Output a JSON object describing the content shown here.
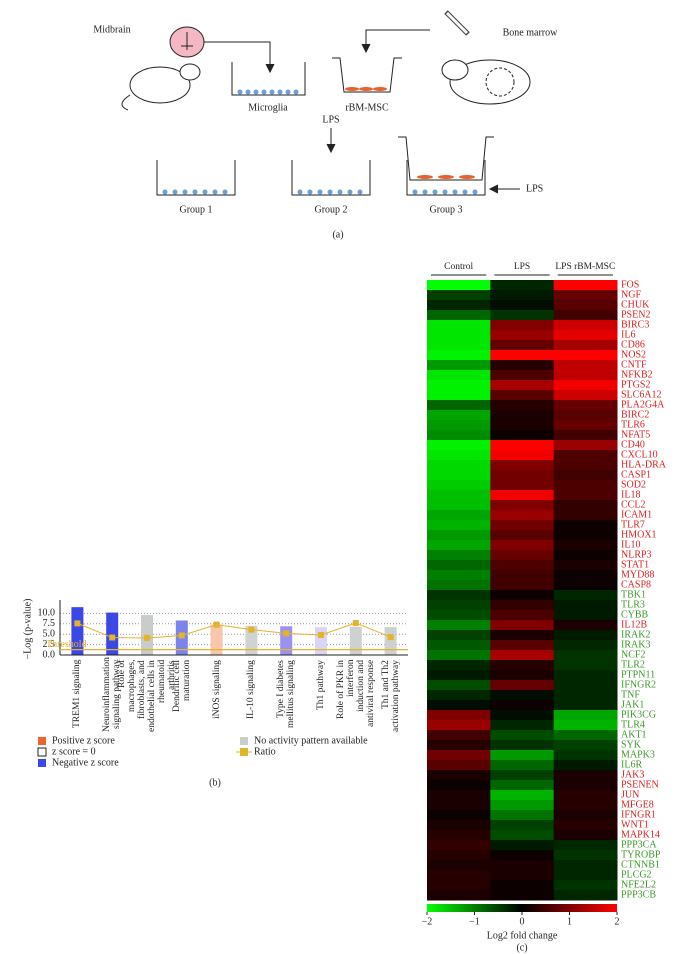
{
  "panel_a": {
    "labels": {
      "midbrain": "Midbrain",
      "bone_marrow": "Bone marrow",
      "microglia": "Microglia",
      "rbm_msc": "rBM-MSC",
      "lps_top": "LPS",
      "group1": "Group 1",
      "group2": "Group 2",
      "group3": "Group 3",
      "lps_side": "LPS"
    },
    "panel_label": "(a)"
  },
  "chart_data": [
    {
      "type": "bar",
      "panel_label": "(b)",
      "ylabel": "−Log (p-value)",
      "categories": [
        "TREM1 signaling",
        "Neuroinflammation signaling pathway",
        "Role of macrophages, fibroblasts, and endothelial cells in rheumatoid arthritis",
        "Dendritic cell maturation",
        "iNOS signaling",
        "IL-10 signaling",
        "Type I diabetes mellitus signaling",
        "Th1 pathway",
        "Role of PKR in interferon induction and antiviral response",
        "Th1 and Th2 activation pathway"
      ],
      "values": [
        11.5,
        10.2,
        9.6,
        8.3,
        7.3,
        7.0,
        6.9,
        6.7,
        6.8,
        6.7
      ],
      "colors": [
        "#3b47e6",
        "#3b47e6",
        "#c8cdca",
        "#7b84ea",
        "#f7c6ad",
        "#cfd3d1",
        "#9a92ee",
        "#d9d6f5",
        "#cdd1cf",
        "#cdd1cf"
      ],
      "series": [
        {
          "name": "Ratio",
          "color": "#e3b42a",
          "values": [
            7.6,
            4.2,
            4.1,
            4.7,
            7.3,
            6.1,
            5.2,
            4.8,
            7.7,
            4.3
          ]
        }
      ],
      "threshold": {
        "value": 1.3,
        "label": "Threshold",
        "color": "#e3b42a"
      },
      "ylim": [
        0,
        12.5
      ],
      "yticks": [
        {
          "value": 0,
          "label": "0.0"
        },
        2.5,
        {
          "value": 5,
          "label": "5.0"
        },
        7.5,
        {
          "value": 10,
          "label": "10.0"
        }
      ],
      "grid": true,
      "legend": [
        {
          "label": "Positive z score",
          "color": "#f0612d"
        },
        {
          "label": "z score = 0",
          "color": "#ffffff"
        },
        {
          "label": "Negative z score",
          "color": "#3b47e6"
        },
        {
          "label": "No activity pattern available",
          "color": "#c8cdca"
        }
      ]
    },
    {
      "type": "heatmap",
      "panel_label": "(c)",
      "columns": [
        "Control",
        "LPS",
        "LPS rBM-MSC"
      ],
      "rows": [
        "FOS",
        "NGF",
        "CHUK",
        "PSEN2",
        "BIRC3",
        "IL6",
        "CD86",
        "NOS2",
        "CNTF",
        "NFKB2",
        "PTGS2",
        "SLC6A12",
        "PLA2G4A",
        "BIRC2",
        "TLR6",
        "NFAT5",
        "CD40",
        "CXCL10",
        "HLA-DRA",
        "CASP1",
        "SOD2",
        "IL18",
        "CCL2",
        "ICAM1",
        "TLR7",
        "HMOX1",
        "IL10",
        "NLRP3",
        "STAT1",
        "MYD88",
        "CASP8",
        "TBK1",
        "TLR3",
        "CYBB",
        "IL12B",
        "IRAK2",
        "IRAK3",
        "NCF2",
        "TLR2",
        "PTPN11",
        "IFNGR2",
        "TNF",
        "JAK1",
        "PIK3CG",
        "TLR4",
        "AKT1",
        "SYK",
        "MAPK3",
        "IL6R",
        "JAK3",
        "PSENEN",
        "JUN",
        "MFGE8",
        "IFNGR1",
        "WNT1",
        "MAPK14",
        "PPP3CA",
        "TYROBP",
        "CTNNB1",
        "PLCG2",
        "NFE2L2",
        "PPP3CB"
      ],
      "label_colors": [
        "#e02020",
        "#e02020",
        "#e02020",
        "#e02020",
        "#e02020",
        "#e02020",
        "#e02020",
        "#e02020",
        "#e02020",
        "#e02020",
        "#e02020",
        "#e02020",
        "#e02020",
        "#e02020",
        "#e02020",
        "#e02020",
        "#e02020",
        "#e02020",
        "#e02020",
        "#e02020",
        "#e02020",
        "#e02020",
        "#e02020",
        "#e02020",
        "#e02020",
        "#e02020",
        "#e02020",
        "#e02020",
        "#e02020",
        "#e02020",
        "#e02020",
        "#3a9a2a",
        "#3a9a2a",
        "#3a9a2a",
        "#e02020",
        "#3a9a2a",
        "#3a9a2a",
        "#3a9a2a",
        "#3a9a2a",
        "#3a9a2a",
        "#3a9a2a",
        "#3a9a2a",
        "#3a9a2a",
        "#3a9a2a",
        "#3a9a2a",
        "#3a9a2a",
        "#3a9a2a",
        "#3a9a2a",
        "#3a9a2a",
        "#e02020",
        "#e02020",
        "#e02020",
        "#e02020",
        "#e02020",
        "#e02020",
        "#e02020",
        "#3a9a2a",
        "#3a9a2a",
        "#3a9a2a",
        "#3a9a2a",
        "#3a9a2a",
        "#3a9a2a"
      ],
      "values": [
        [
          -2,
          -0.3,
          2
        ],
        [
          -0.5,
          -0.2,
          0.8
        ],
        [
          -0.3,
          -0.1,
          0.7
        ],
        [
          -0.8,
          -0.4,
          0.5
        ],
        [
          -1.8,
          1,
          1.6
        ],
        [
          -1.8,
          1.2,
          1.8
        ],
        [
          -1.8,
          0.8,
          1.3
        ],
        [
          -1.9,
          2,
          2
        ],
        [
          -1.2,
          0.3,
          1.5
        ],
        [
          -1.8,
          0.6,
          1.5
        ],
        [
          -1.9,
          1.3,
          1.9
        ],
        [
          -1.9,
          0.7,
          1.6
        ],
        [
          -0.8,
          0.3,
          0.8
        ],
        [
          -1.3,
          0.2,
          0.7
        ],
        [
          -1.2,
          0.2,
          0.8
        ],
        [
          -1.1,
          0.1,
          0.5
        ],
        [
          -1.9,
          2,
          1.2
        ],
        [
          -1.8,
          1.9,
          0.6
        ],
        [
          -1.7,
          1,
          0.6
        ],
        [
          -1.7,
          0.9,
          0.5
        ],
        [
          -1.6,
          0.9,
          0.6
        ],
        [
          -1.5,
          1.9,
          0.6
        ],
        [
          -1.5,
          1,
          0.4
        ],
        [
          -1.3,
          1.2,
          0.4
        ],
        [
          -1.4,
          0.9,
          0.1
        ],
        [
          -1.2,
          0.7,
          0.1
        ],
        [
          -1.3,
          1,
          0.2
        ],
        [
          -1,
          0.8,
          0.1
        ],
        [
          -0.8,
          0.6,
          0.2
        ],
        [
          -1,
          0.5,
          0.1
        ],
        [
          -0.9,
          0.5,
          0.1
        ],
        [
          -0.4,
          0.1,
          -0.3
        ],
        [
          -0.5,
          0.4,
          -0.2
        ],
        [
          -0.6,
          0.6,
          -0.2
        ],
        [
          -1,
          1,
          0.2
        ],
        [
          -0.5,
          0.2,
          -0.2
        ],
        [
          -0.7,
          0.7,
          -0.3
        ],
        [
          -0.9,
          1.3,
          -0.4
        ],
        [
          -0.3,
          0.3,
          -0.4
        ],
        [
          -0.2,
          0.2,
          -0.3
        ],
        [
          -0.6,
          0.8,
          -0.3
        ],
        [
          -0.3,
          -0.1,
          -0.3
        ],
        [
          -0.1,
          0.1,
          -0.3
        ],
        [
          1,
          -0.1,
          -1.3
        ],
        [
          1.2,
          -0.3,
          -1.4
        ],
        [
          0.5,
          -0.6,
          -0.8
        ],
        [
          0.3,
          -0.4,
          -0.5
        ],
        [
          0.9,
          -1.2,
          -0.4
        ],
        [
          0.7,
          -0.8,
          -0.2
        ],
        [
          0.2,
          -0.5,
          0.2
        ],
        [
          0.1,
          -0.8,
          0.2
        ],
        [
          0.2,
          -1.4,
          0.3
        ],
        [
          0.2,
          -1.2,
          0.3
        ],
        [
          0.1,
          -0.9,
          0.2
        ],
        [
          0.2,
          -0.5,
          0.3
        ],
        [
          0.3,
          -0.6,
          0.2
        ],
        [
          0.4,
          -0.2,
          -0.3
        ],
        [
          0.3,
          0.1,
          -0.4
        ],
        [
          0.2,
          0.2,
          -0.3
        ],
        [
          0.3,
          0.2,
          -0.3
        ],
        [
          0.3,
          0.1,
          -0.4
        ],
        [
          0.2,
          0.1,
          -0.3
        ]
      ],
      "zlim": [
        -2,
        2
      ],
      "zticks": [
        {
          "value": -2,
          "label": "−2"
        },
        {
          "value": -1,
          "label": "−1"
        },
        0,
        1,
        2
      ],
      "colormap": [
        "#00ff00",
        "#000000",
        "#ff0000"
      ],
      "colorbar_label": "Log2 fold change"
    }
  ]
}
